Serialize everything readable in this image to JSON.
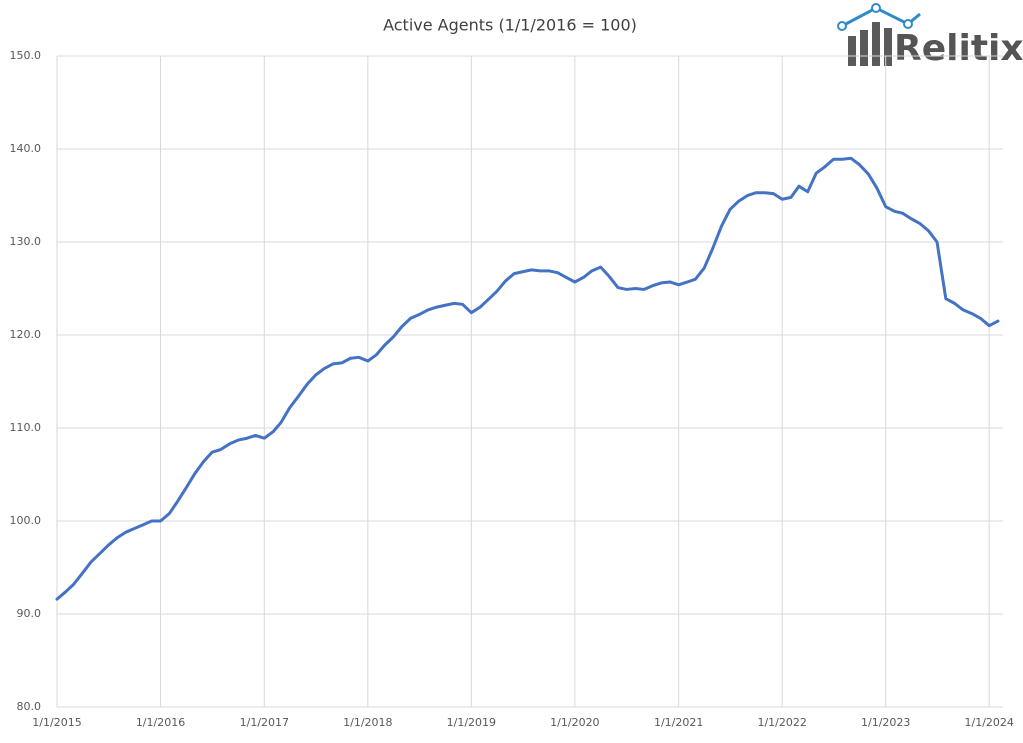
{
  "chart_data": {
    "type": "line",
    "title": "Active Agents (1/1/2016 = 100)",
    "logo_text": "Relitix",
    "color": "#4472c4",
    "x": [
      "1/1/2015",
      "2/1/2015",
      "3/1/2015",
      "4/1/2015",
      "5/1/2015",
      "6/1/2015",
      "7/1/2015",
      "8/1/2015",
      "9/1/2015",
      "10/1/2015",
      "11/1/2015",
      "12/1/2015",
      "1/1/2016",
      "2/1/2016",
      "3/1/2016",
      "4/1/2016",
      "5/1/2016",
      "6/1/2016",
      "7/1/2016",
      "8/1/2016",
      "9/1/2016",
      "10/1/2016",
      "11/1/2016",
      "12/1/2016",
      "1/1/2017",
      "2/1/2017",
      "3/1/2017",
      "4/1/2017",
      "5/1/2017",
      "6/1/2017",
      "7/1/2017",
      "8/1/2017",
      "9/1/2017",
      "10/1/2017",
      "11/1/2017",
      "12/1/2017",
      "1/1/2018",
      "2/1/2018",
      "3/1/2018",
      "4/1/2018",
      "5/1/2018",
      "6/1/2018",
      "7/1/2018",
      "8/1/2018",
      "9/1/2018",
      "10/1/2018",
      "11/1/2018",
      "12/1/2018",
      "1/1/2019",
      "2/1/2019",
      "3/1/2019",
      "4/1/2019",
      "5/1/2019",
      "6/1/2019",
      "7/1/2019",
      "8/1/2019",
      "9/1/2019",
      "10/1/2019",
      "11/1/2019",
      "12/1/2019",
      "1/1/2020",
      "2/1/2020",
      "3/1/2020",
      "4/1/2020",
      "5/1/2020",
      "6/1/2020",
      "7/1/2020",
      "8/1/2020",
      "9/1/2020",
      "10/1/2020",
      "11/1/2020",
      "12/1/2020",
      "1/1/2021",
      "2/1/2021",
      "3/1/2021",
      "4/1/2021",
      "5/1/2021",
      "6/1/2021",
      "7/1/2021",
      "8/1/2021",
      "9/1/2021",
      "10/1/2021",
      "11/1/2021",
      "12/1/2021",
      "1/1/2022",
      "2/1/2022",
      "3/1/2022",
      "4/1/2022",
      "5/1/2022",
      "6/1/2022",
      "7/1/2022",
      "8/1/2022",
      "9/1/2022",
      "10/1/2022",
      "11/1/2022",
      "12/1/2022",
      "1/1/2023",
      "2/1/2023",
      "3/1/2023",
      "4/1/2023",
      "5/1/2023",
      "6/1/2023",
      "7/1/2023",
      "8/1/2023",
      "9/1/2023",
      "10/1/2023",
      "11/1/2023",
      "12/1/2023",
      "1/1/2024",
      "2/1/2024"
    ],
    "values": [
      91.6,
      92.4,
      93.2,
      94.4,
      95.6,
      96.5,
      97.4,
      98.2,
      98.8,
      99.2,
      99.6,
      100.0,
      100.0,
      100.8,
      102.1,
      103.6,
      105.1,
      106.4,
      107.4,
      107.7,
      108.3,
      108.7,
      108.9,
      109.2,
      108.9,
      109.6,
      110.6,
      112.2,
      113.4,
      114.7,
      115.7,
      116.4,
      116.9,
      117.0,
      117.5,
      117.6,
      117.2,
      117.9,
      118.9,
      119.8,
      120.9,
      121.8,
      122.2,
      122.7,
      123.0,
      123.2,
      123.4,
      123.3,
      122.4,
      123.0,
      123.8,
      124.7,
      125.8,
      126.6,
      126.8,
      127.0,
      126.9,
      126.9,
      126.7,
      126.2,
      125.7,
      126.2,
      126.9,
      127.3,
      126.3,
      125.1,
      124.9,
      125.0,
      124.9,
      125.3,
      125.6,
      125.7,
      125.4,
      125.7,
      126.0,
      127.2,
      129.3,
      131.7,
      133.5,
      134.4,
      135.0,
      135.3,
      135.3,
      135.2,
      134.6,
      134.8,
      136.0,
      135.4,
      137.4,
      138.1,
      138.9,
      138.9,
      139.0,
      138.3,
      137.3,
      135.8,
      133.8,
      133.3,
      133.1,
      132.5,
      132.0,
      131.2,
      130.0,
      123.9,
      123.4,
      122.7,
      122.3,
      121.8,
      121.0,
      121.5
    ],
    "xlim": [
      "1/1/2015",
      "2/1/2024"
    ],
    "xticks": [
      "1/1/2015",
      "1/1/2016",
      "1/1/2017",
      "1/1/2018",
      "1/1/2019",
      "1/1/2020",
      "1/1/2021",
      "1/1/2022",
      "1/1/2023",
      "1/1/2024"
    ],
    "ylim": [
      80,
      150
    ],
    "yticks": [
      {
        "value": 80,
        "label": "80.0"
      },
      {
        "value": 90,
        "label": "90.0"
      },
      {
        "value": 100,
        "label": "100.0"
      },
      {
        "value": 110,
        "label": "110.0"
      },
      {
        "value": 120,
        "label": "120.0"
      },
      {
        "value": 130,
        "label": "130.0"
      },
      {
        "value": 140,
        "label": "140.0"
      },
      {
        "value": 150,
        "label": "150.0"
      }
    ],
    "grid": true
  }
}
